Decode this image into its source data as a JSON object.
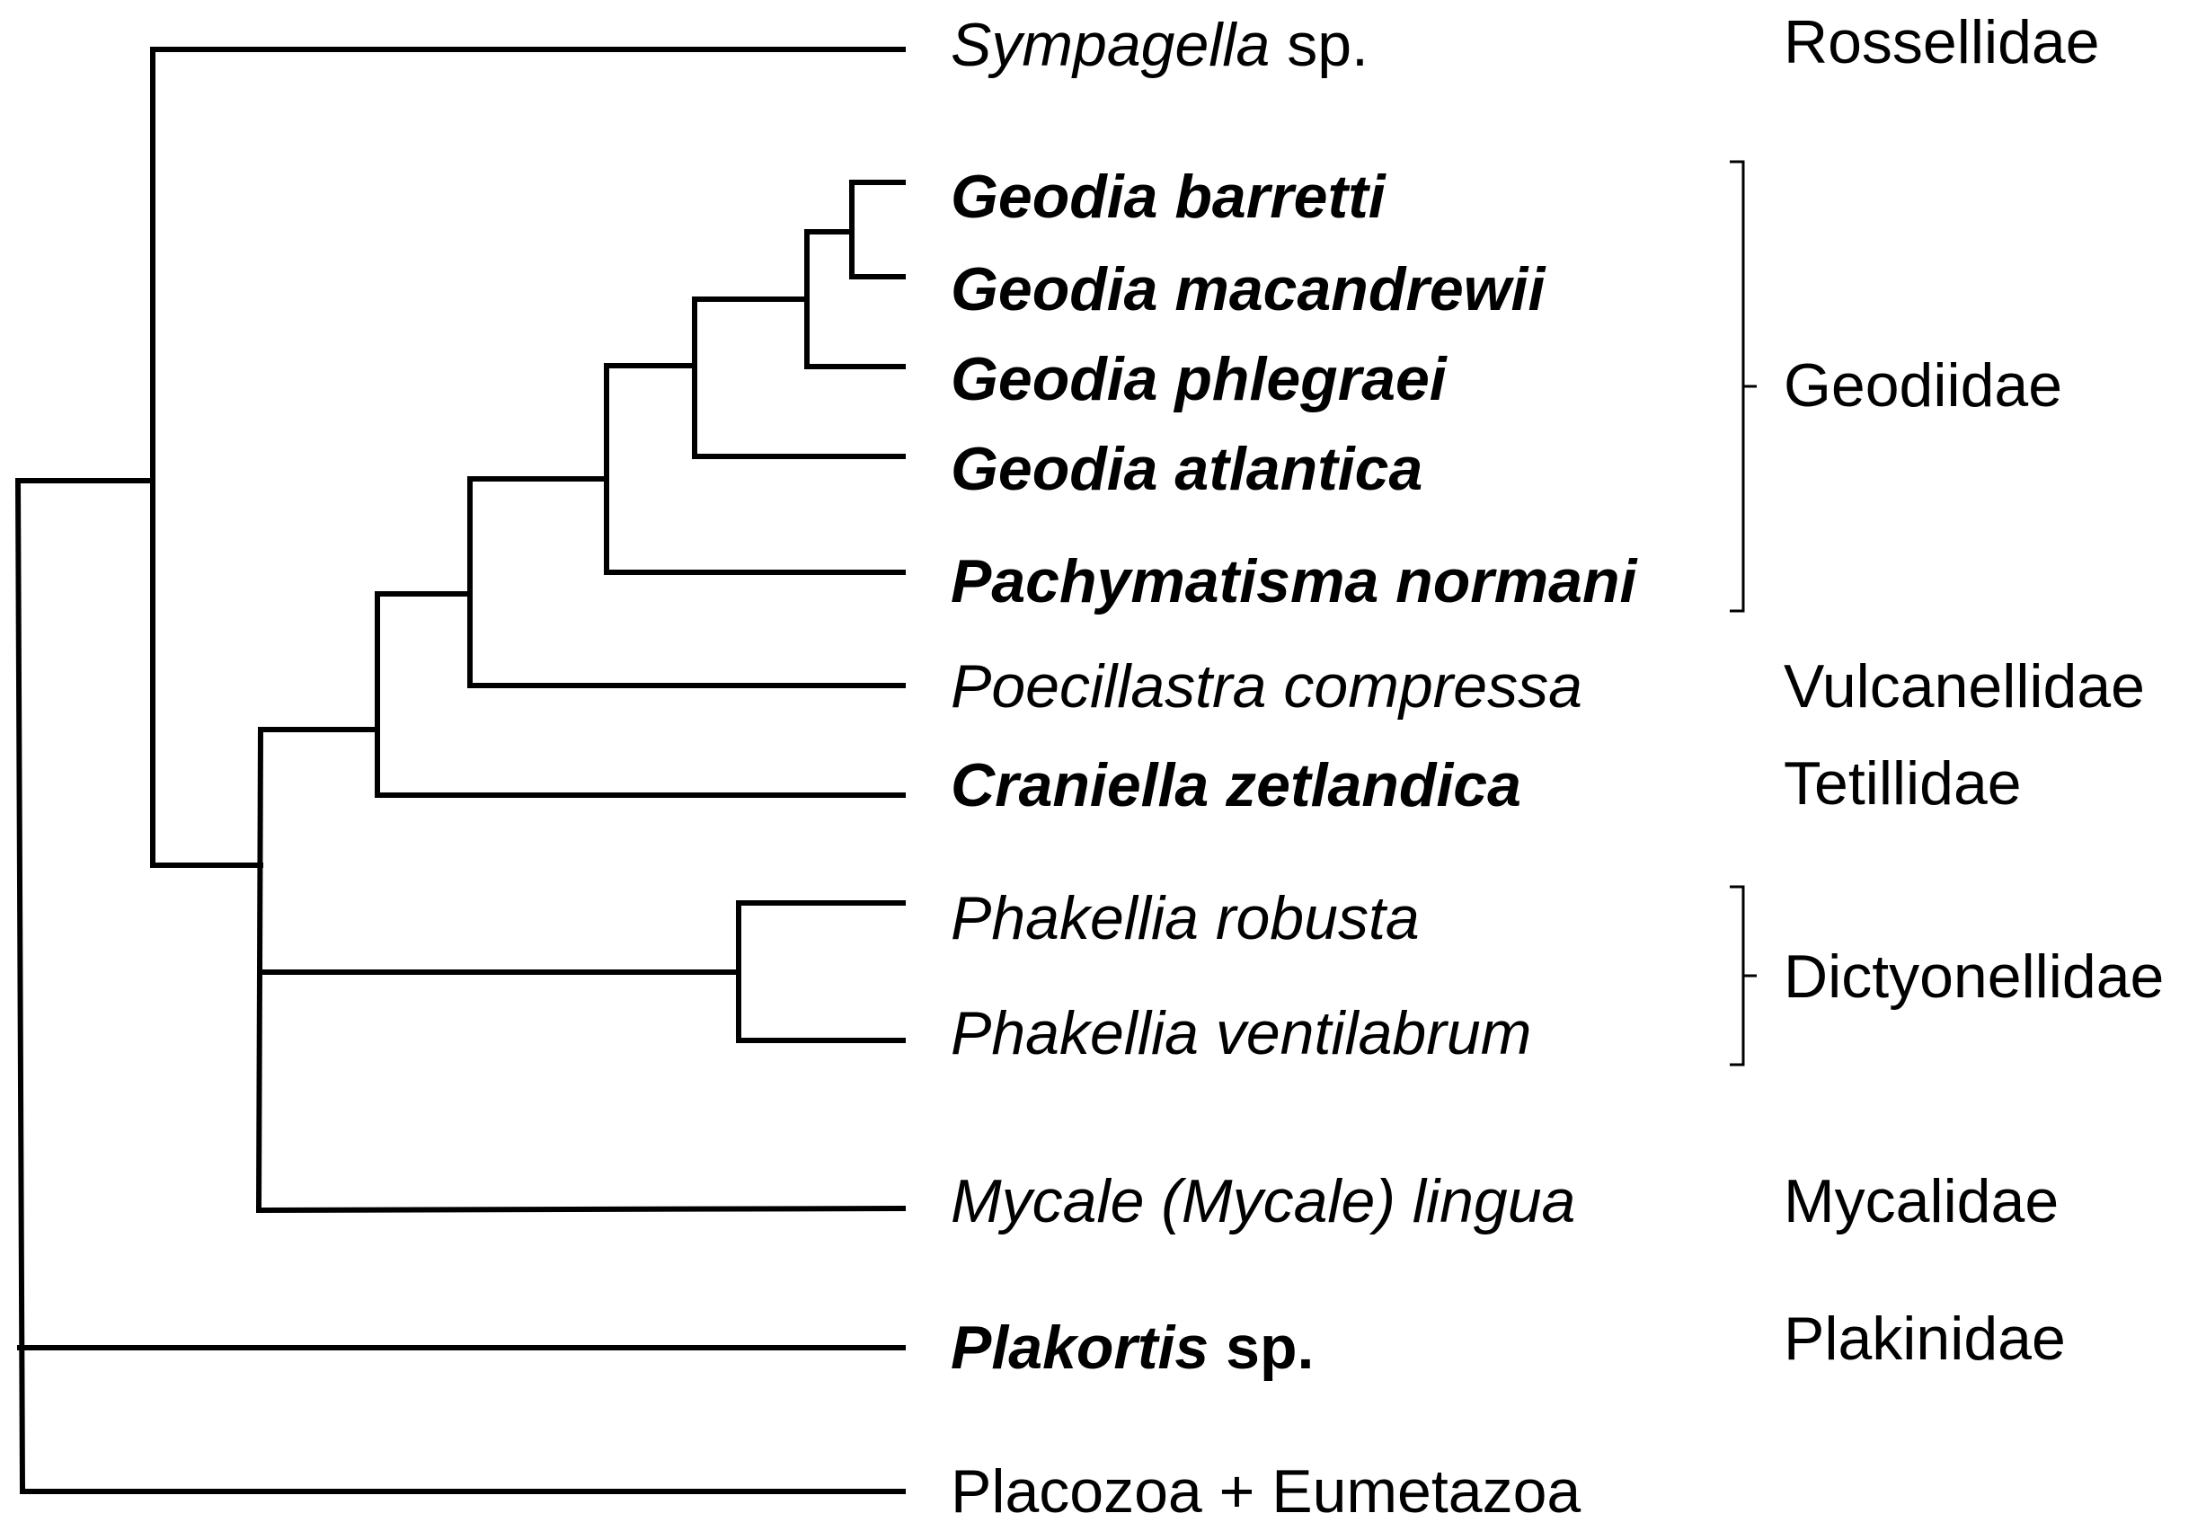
{
  "taxa": [
    {
      "parts": [
        {
          "text": "Sympagella",
          "italic": true,
          "bold": false
        },
        {
          "text": " sp.",
          "italic": false,
          "bold": false
        }
      ]
    },
    {
      "parts": [
        {
          "text": "Geodia barretti",
          "italic": true,
          "bold": true
        }
      ]
    },
    {
      "parts": [
        {
          "text": "Geodia macandrewii",
          "italic": true,
          "bold": true
        }
      ]
    },
    {
      "parts": [
        {
          "text": "Geodia phlegraei",
          "italic": true,
          "bold": true
        }
      ]
    },
    {
      "parts": [
        {
          "text": "Geodia atlantica",
          "italic": true,
          "bold": true
        }
      ]
    },
    {
      "parts": [
        {
          "text": "Pachymatisma normani",
          "italic": true,
          "bold": true
        }
      ]
    },
    {
      "parts": [
        {
          "text": "Poecillastra compressa",
          "italic": true,
          "bold": false
        }
      ]
    },
    {
      "parts": [
        {
          "text": "Craniella zetlandica",
          "italic": true,
          "bold": true
        }
      ]
    },
    {
      "parts": [
        {
          "text": "Phakellia robusta",
          "italic": true,
          "bold": false
        }
      ]
    },
    {
      "parts": [
        {
          "text": "Phakellia ventilabrum",
          "italic": true,
          "bold": false
        }
      ]
    },
    {
      "parts": [
        {
          "text": "Mycale (Mycale) lingua",
          "italic": true,
          "bold": false
        }
      ]
    },
    {
      "parts": [
        {
          "text": "Plakortis",
          "italic": true,
          "bold": true
        },
        {
          "text": " sp.",
          "italic": false,
          "bold": true
        }
      ]
    },
    {
      "parts": [
        {
          "text": "Placozoa + Eumetazoa",
          "italic": false,
          "bold": false
        }
      ]
    }
  ],
  "families": [
    "Rossellidae",
    "Geodiidae",
    "Vulcanellidae",
    "Tetillidae",
    "Dictyonellidae",
    "Mycalidae",
    "Plakinidae"
  ],
  "colors": {
    "lines": "#000000",
    "text": "#000000",
    "background": "#ffffff"
  }
}
